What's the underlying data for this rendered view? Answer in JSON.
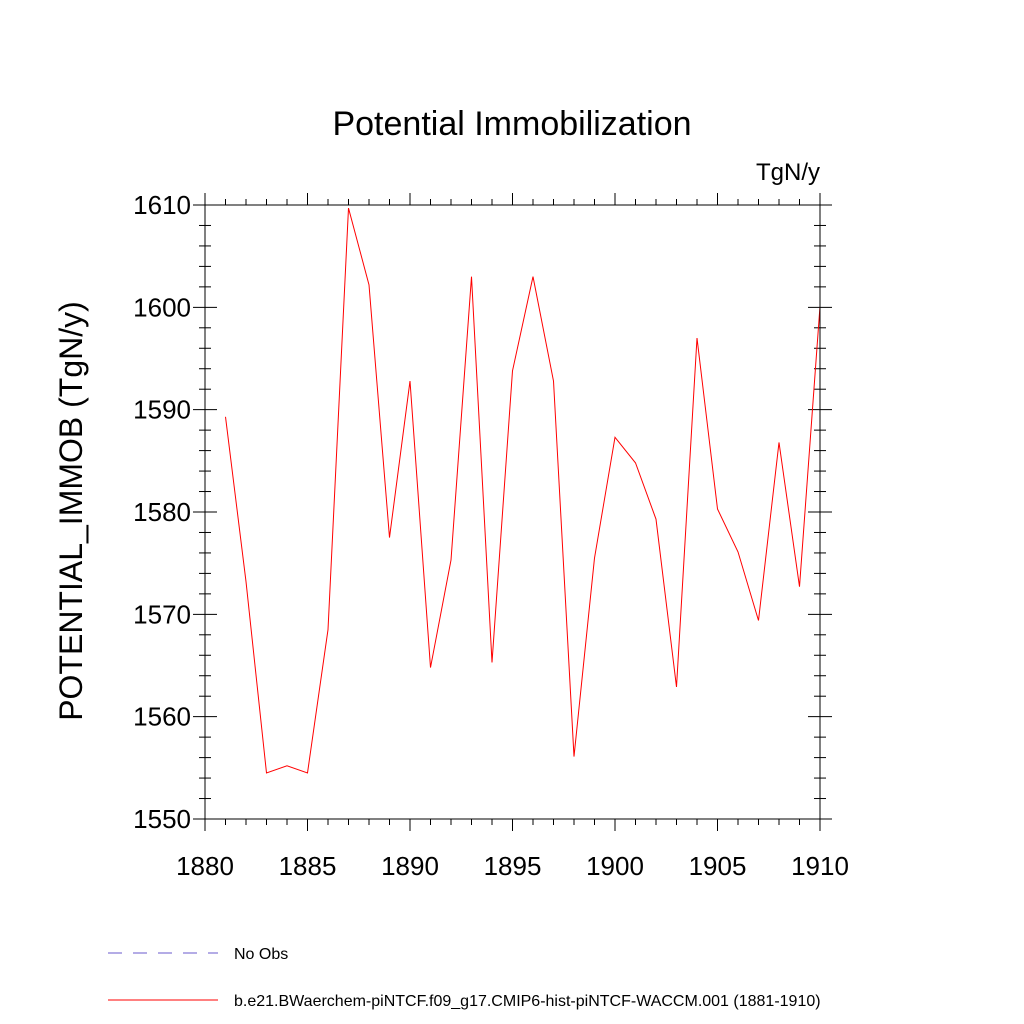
{
  "chart_data": {
    "type": "line",
    "title": "Potential Immobilization",
    "units_label": "TgN/y",
    "ylabel": "POTENTIAL_IMMOB  (TgN/y)",
    "xlabel": "",
    "xlim": [
      1880,
      1910
    ],
    "ylim": [
      1550,
      1610
    ],
    "x_ticks": [
      1880,
      1885,
      1890,
      1895,
      1900,
      1905,
      1910
    ],
    "y_ticks": [
      1550,
      1560,
      1570,
      1580,
      1590,
      1600,
      1610
    ],
    "x_minor_step": 1,
    "y_minor_step": 2,
    "grid": false,
    "legend_position": "bottom-left",
    "series": [
      {
        "name": "b.e21.BWaerchem-piNTCF.f09_g17.CMIP6-hist-piNTCF-WACCM.001 (1881-1910)",
        "color": "#ff0000",
        "dash": "solid",
        "x": [
          1881,
          1882,
          1883,
          1884,
          1885,
          1886,
          1887,
          1888,
          1889,
          1890,
          1891,
          1892,
          1893,
          1894,
          1895,
          1896,
          1897,
          1898,
          1899,
          1900,
          1901,
          1902,
          1903,
          1904,
          1905,
          1906,
          1907,
          1908,
          1909,
          1910
        ],
        "y": [
          1589.3,
          1573.2,
          1554.5,
          1555.2,
          1554.5,
          1568.5,
          1609.7,
          1602.2,
          1577.5,
          1592.8,
          1564.8,
          1575.3,
          1603.0,
          1565.3,
          1593.8,
          1603.0,
          1592.8,
          1556.1,
          1575.5,
          1587.3,
          1584.8,
          1579.3,
          1562.9,
          1597.0,
          1580.3,
          1576.1,
          1569.4,
          1586.8,
          1572.7,
          1600.1
        ]
      }
    ],
    "legend": [
      {
        "label": "No Obs",
        "color": "#6a5acd",
        "dash": "dashed"
      },
      {
        "label": "b.e21.BWaerchem-piNTCF.f09_g17.CMIP6-hist-piNTCF-WACCM.001 (1881-1910)",
        "color": "#ff0000",
        "dash": "solid"
      }
    ]
  }
}
